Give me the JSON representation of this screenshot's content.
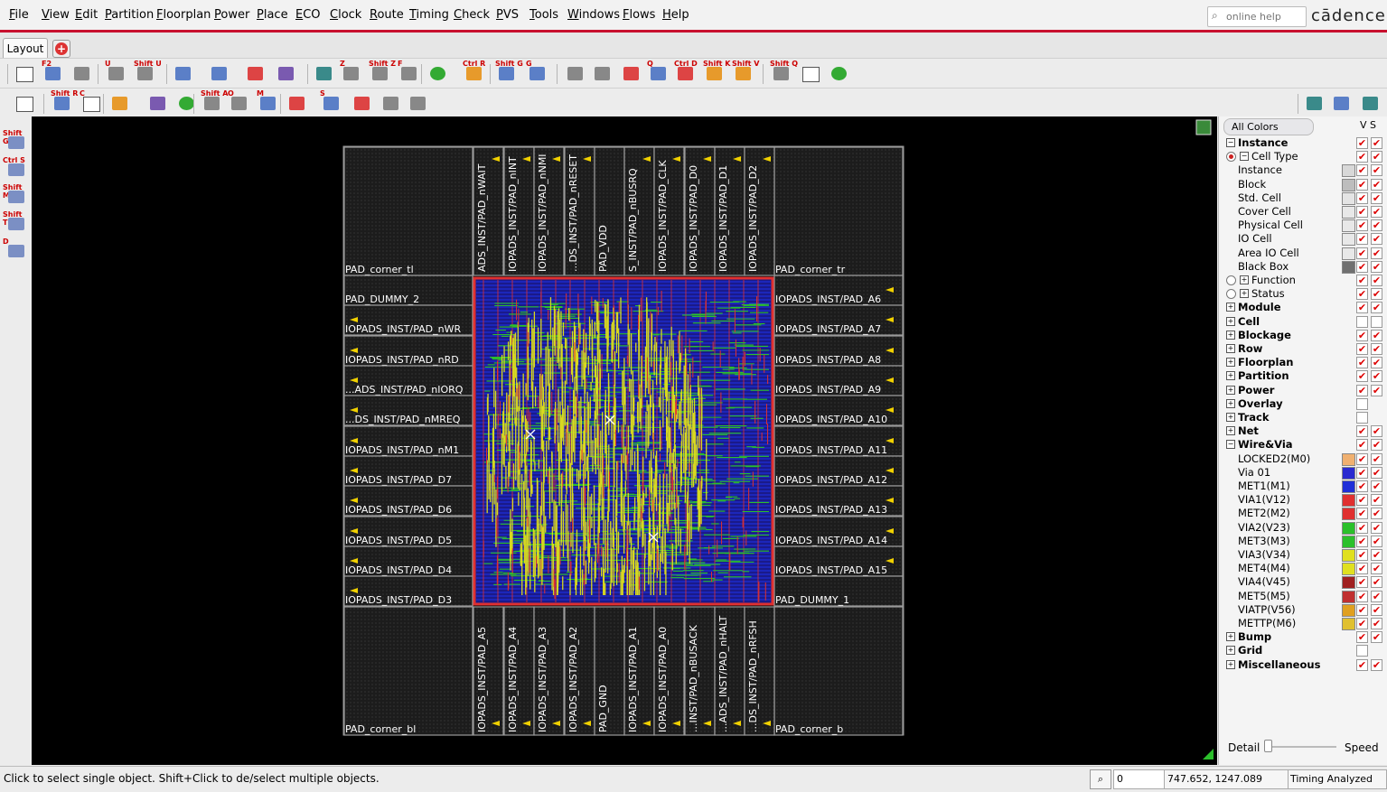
{
  "menu": [
    "File",
    "View",
    "Edit",
    "Partition",
    "Floorplan",
    "Power",
    "Place",
    "ECO",
    "Clock",
    "Route",
    "Timing",
    "Check",
    "PVS",
    "Tools",
    "Windows",
    "Flows",
    "Help"
  ],
  "search": {
    "placeholder": "online help"
  },
  "logo": "cādence",
  "tabs": {
    "layout": "Layout",
    "add": "+"
  },
  "toolbar1": {
    "shortcuts": [
      "F2",
      "U",
      "Shift U",
      "Z",
      "Shift Z",
      "F",
      "Ctrl R",
      "Shift G",
      "G",
      "Q",
      "Ctrl D",
      "Shift K",
      "Shift V",
      "Shift Q"
    ]
  },
  "toolbar2": {
    "shortcuts": [
      "Shift R",
      "C",
      "Shift A",
      "O",
      "M",
      "S"
    ]
  },
  "left_toolbar": {
    "shortcuts": [
      "Shift G",
      "Ctrl S",
      "Shift M",
      "Shift T",
      "D"
    ]
  },
  "pads": {
    "corners": {
      "tl": "PAD_corner_tl",
      "tr": "PAD_corner_tr",
      "bl": "PAD_corner_bl",
      "br": "PAD_corner_b"
    },
    "top": [
      "ADS_INST/PAD_nWAIT",
      "IOPADS_INST/PAD_nINT",
      "IOPADS_INST/PAD_nNMI",
      "...DS_INST/PAD_nRESET",
      "PAD_VDD",
      "S_INST/PAD_nBUSRQ",
      "IOPADS_INST/PAD_CLK",
      "IOPADS_INST/PAD_D0",
      "IOPADS_INST/PAD_D1",
      "IOPADS_INST/PAD_D2"
    ],
    "left": [
      "PAD_DUMMY_2",
      "IOPADS_INST/PAD_nWR",
      "IOPADS_INST/PAD_nRD",
      "...ADS_INST/PAD_nIORQ",
      "...DS_INST/PAD_nMREQ",
      "IOPADS_INST/PAD_nM1",
      "IOPADS_INST/PAD_D7",
      "IOPADS_INST/PAD_D6",
      "IOPADS_INST/PAD_D5",
      "IOPADS_INST/PAD_D4",
      "IOPADS_INST/PAD_D3"
    ],
    "right": [
      "IOPADS_INST/PAD_A6",
      "IOPADS_INST/PAD_A7",
      "IOPADS_INST/PAD_A8",
      "IOPADS_INST/PAD_A9",
      "IOPADS_INST/PAD_A10",
      "IOPADS_INST/PAD_A11",
      "IOPADS_INST/PAD_A12",
      "IOPADS_INST/PAD_A13",
      "IOPADS_INST/PAD_A14",
      "IOPADS_INST/PAD_A15",
      "PAD_DUMMY_1"
    ],
    "bottom": [
      "IOPADS_INST/PAD_A5",
      "IOPADS_INST/PAD_A4",
      "IOPADS_INST/PAD_A3",
      "IOPADS_INST/PAD_A2",
      "PAD_GND",
      "IOPADS_INST/PAD_A1",
      "IOPADS_INST/PAD_A0",
      "...INST/PAD_nBUSACK",
      "...ADS_INST/PAD_nHALT",
      "...DS_INST/PAD_nRFSH"
    ]
  },
  "panel": {
    "all_colors": "All Colors",
    "vs_header": "V S",
    "rows": [
      {
        "label": "Instance",
        "kind": "group",
        "expanded": true,
        "v": true,
        "s": true
      },
      {
        "label": "Cell Type",
        "kind": "radio-group",
        "on": true,
        "expanded": true,
        "v": true,
        "s": true
      },
      {
        "label": "Instance",
        "kind": "item",
        "swatch": "#d8d8d8",
        "v": true,
        "s": true
      },
      {
        "label": "Block",
        "kind": "item",
        "swatch": "#bdbdbd",
        "v": true,
        "s": true
      },
      {
        "label": "Std. Cell",
        "kind": "item",
        "swatch": "#e4e4e4",
        "v": true,
        "s": true
      },
      {
        "label": "Cover Cell",
        "kind": "item",
        "swatch": "#e8e8e8",
        "v": true,
        "s": true
      },
      {
        "label": "Physical Cell",
        "kind": "item",
        "swatch": "#e8e8e8",
        "v": true,
        "s": true
      },
      {
        "label": "IO Cell",
        "kind": "item",
        "swatch": "#e8e8e8",
        "v": true,
        "s": true
      },
      {
        "label": "Area IO Cell",
        "kind": "item",
        "swatch": "#e8e8e8",
        "v": true,
        "s": true
      },
      {
        "label": "Black Box",
        "kind": "item",
        "swatch": "#707070",
        "v": true,
        "s": true
      },
      {
        "label": "Function",
        "kind": "radio-group",
        "on": false,
        "expanded": false,
        "v": true,
        "s": true
      },
      {
        "label": "Status",
        "kind": "radio-group",
        "on": false,
        "expanded": false,
        "v": true,
        "s": true
      },
      {
        "label": "Module",
        "kind": "group",
        "expanded": false,
        "v": true,
        "s": true
      },
      {
        "label": "Cell",
        "kind": "group",
        "expanded": false,
        "v": false,
        "s": false
      },
      {
        "label": "Blockage",
        "kind": "group",
        "expanded": false,
        "v": true,
        "s": true
      },
      {
        "label": "Row",
        "kind": "group",
        "expanded": false,
        "v": true,
        "s": true
      },
      {
        "label": "Floorplan",
        "kind": "group",
        "expanded": false,
        "v": true,
        "s": true
      },
      {
        "label": "Partition",
        "kind": "group",
        "expanded": false,
        "v": true,
        "s": true
      },
      {
        "label": "Power",
        "kind": "group",
        "expanded": false,
        "v": true,
        "s": true
      },
      {
        "label": "Overlay",
        "kind": "group",
        "expanded": false,
        "v": false,
        "s": null
      },
      {
        "label": "Track",
        "kind": "group",
        "expanded": false,
        "v": false,
        "s": null
      },
      {
        "label": "Net",
        "kind": "group",
        "expanded": false,
        "v": true,
        "s": true
      },
      {
        "label": "Wire&Via",
        "kind": "group",
        "expanded": true,
        "v": true,
        "s": true
      },
      {
        "label": "LOCKED2(M0)",
        "kind": "item",
        "swatch": "#f0b070",
        "v": true,
        "s": true
      },
      {
        "label": "Via 01",
        "kind": "item",
        "swatch": "#2a2ad0",
        "v": true,
        "s": true
      },
      {
        "label": "MET1(M1)",
        "kind": "item",
        "swatch": "#1f2fd8",
        "v": true,
        "s": true
      },
      {
        "label": "VIA1(V12)",
        "kind": "item",
        "swatch": "#e03030",
        "v": true,
        "s": true
      },
      {
        "label": "MET2(M2)",
        "kind": "item",
        "swatch": "#e03030",
        "v": true,
        "s": true
      },
      {
        "label": "VIA2(V23)",
        "kind": "item",
        "swatch": "#2bc02b",
        "v": true,
        "s": true
      },
      {
        "label": "MET3(M3)",
        "kind": "item",
        "swatch": "#2bc02b",
        "v": true,
        "s": true
      },
      {
        "label": "VIA3(V34)",
        "kind": "item",
        "swatch": "#e0e020",
        "v": true,
        "s": true
      },
      {
        "label": "MET4(M4)",
        "kind": "item",
        "swatch": "#e0e020",
        "v": true,
        "s": true
      },
      {
        "label": "VIA4(V45)",
        "kind": "item",
        "swatch": "#a02020",
        "v": true,
        "s": true
      },
      {
        "label": "MET5(M5)",
        "kind": "item",
        "swatch": "#c03030",
        "v": true,
        "s": true
      },
      {
        "label": "VIATP(V56)",
        "kind": "item",
        "swatch": "#e0a020",
        "v": true,
        "s": true
      },
      {
        "label": "METTP(M6)",
        "kind": "item",
        "swatch": "#e0c030",
        "v": true,
        "s": true
      },
      {
        "label": "Bump",
        "kind": "group",
        "expanded": false,
        "v": true,
        "s": true
      },
      {
        "label": "Grid",
        "kind": "group",
        "expanded": false,
        "v": false,
        "s": null
      },
      {
        "label": "Miscellaneous",
        "kind": "group",
        "expanded": false,
        "v": true,
        "s": true
      }
    ],
    "detail": "Detail",
    "speed": "Speed"
  },
  "status": {
    "message": "Click to select single object. Shift+Click to de/select multiple objects.",
    "count": "0",
    "coordinates": "747.652, 1247.089",
    "timing": "Timing Analyzed"
  },
  "colors": {
    "accent_red": "#c8102e",
    "core_blue": "#1f2fd8",
    "core_green": "#2bc02b",
    "core_yellow": "#d8d820",
    "core_red": "#e03030",
    "pad_fill": "#1c1c1c",
    "pad_border": "#9a9a9a"
  }
}
